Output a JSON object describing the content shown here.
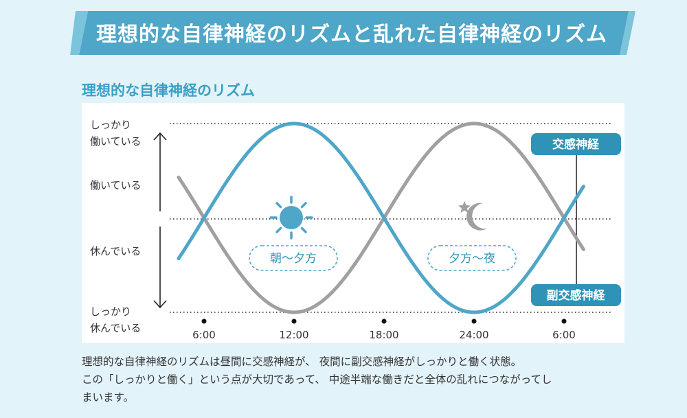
{
  "banner": {
    "title": "理想的な自律神経のリズムと乱れた自律神経のリズム"
  },
  "section": {
    "title": "理想的な自律神経のリズム"
  },
  "axis": {
    "y_labels": {
      "strong_active_1": "しっかり",
      "strong_active_2": "働いている",
      "active": "働いている",
      "resting": "休んでいる",
      "strong_rest_1": "しっかり",
      "strong_rest_2": "休んでいる"
    },
    "x_ticks": [
      "6:00",
      "12:00",
      "18:00",
      "24:00",
      "6:00"
    ]
  },
  "labels": {
    "day_period": "朝〜夕方",
    "night_period": "夕方〜夜",
    "sympathetic": "交感神経",
    "parasympathetic": "副交感神経"
  },
  "colors": {
    "sympathetic": "#4ea6c8",
    "parasympathetic": "#a0a0a0",
    "banner": "#4ea6c8",
    "tag_bg": "#2f93b8",
    "sun": "#4ea6c8",
    "moon": "#a0a0a0"
  },
  "caption": {
    "line1": "理想的な自律神経のリズムは昼間に交感神経が、 夜間に副交感神経がしっかりと働く状態。",
    "line2": "この「しっかりと働く」という点が大切であって、 中途半端な働きだと全体の乱れにつながってし",
    "line3": "まいます。"
  },
  "chart_data": {
    "type": "line",
    "title": "理想的な自律神経のリズム",
    "x": [
      6,
      9,
      12,
      15,
      18,
      21,
      24,
      27,
      30
    ],
    "x_tick_labels": [
      "6:00",
      "12:00",
      "18:00",
      "24:00",
      "6:00"
    ],
    "series": [
      {
        "name": "交感神経",
        "values": [
          0,
          0.7,
          1,
          0.7,
          0,
          -0.7,
          -1,
          -0.7,
          0
        ]
      },
      {
        "name": "副交感神経",
        "values": [
          0,
          -0.7,
          -1,
          -0.7,
          0,
          0.7,
          1,
          0.7,
          0
        ]
      }
    ],
    "ylim": [
      -1,
      1
    ],
    "y_levels": [
      "しっかり休んでいる",
      "休んでいる",
      "働いている",
      "しっかり働いている"
    ],
    "xlabel": "",
    "ylabel": ""
  }
}
